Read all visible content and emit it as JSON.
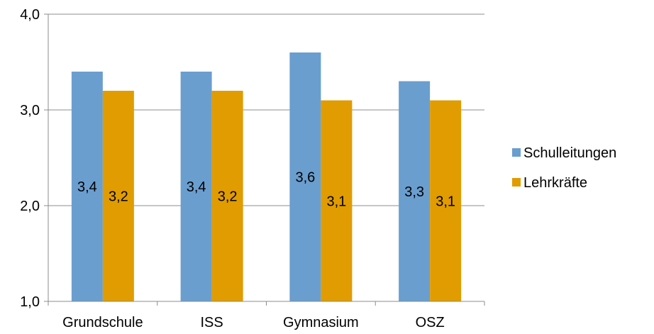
{
  "chart_data": {
    "type": "bar",
    "categories": [
      "Grundschule",
      "ISS",
      "Gymnasium",
      "OSZ"
    ],
    "series": [
      {
        "name": "Schulleitungen",
        "values": [
          3.4,
          3.4,
          3.6,
          3.3
        ],
        "labels": [
          "3,4",
          "3,4",
          "3,6",
          "3,3"
        ],
        "color": "#6a9ecf"
      },
      {
        "name": "Lehrkräfte",
        "values": [
          3.2,
          3.2,
          3.1,
          3.1
        ],
        "labels": [
          "3,2",
          "3,2",
          "3,1",
          "3,1"
        ],
        "color": "#e09c00"
      }
    ],
    "ylim": [
      1.0,
      4.0
    ],
    "yticks": [
      1.0,
      2.0,
      3.0,
      4.0
    ],
    "ytick_labels": [
      "1,0",
      "2,0",
      "3,0",
      "4,0"
    ],
    "grid": true,
    "legend": "right",
    "gridline_color": "#8c8c8c"
  }
}
